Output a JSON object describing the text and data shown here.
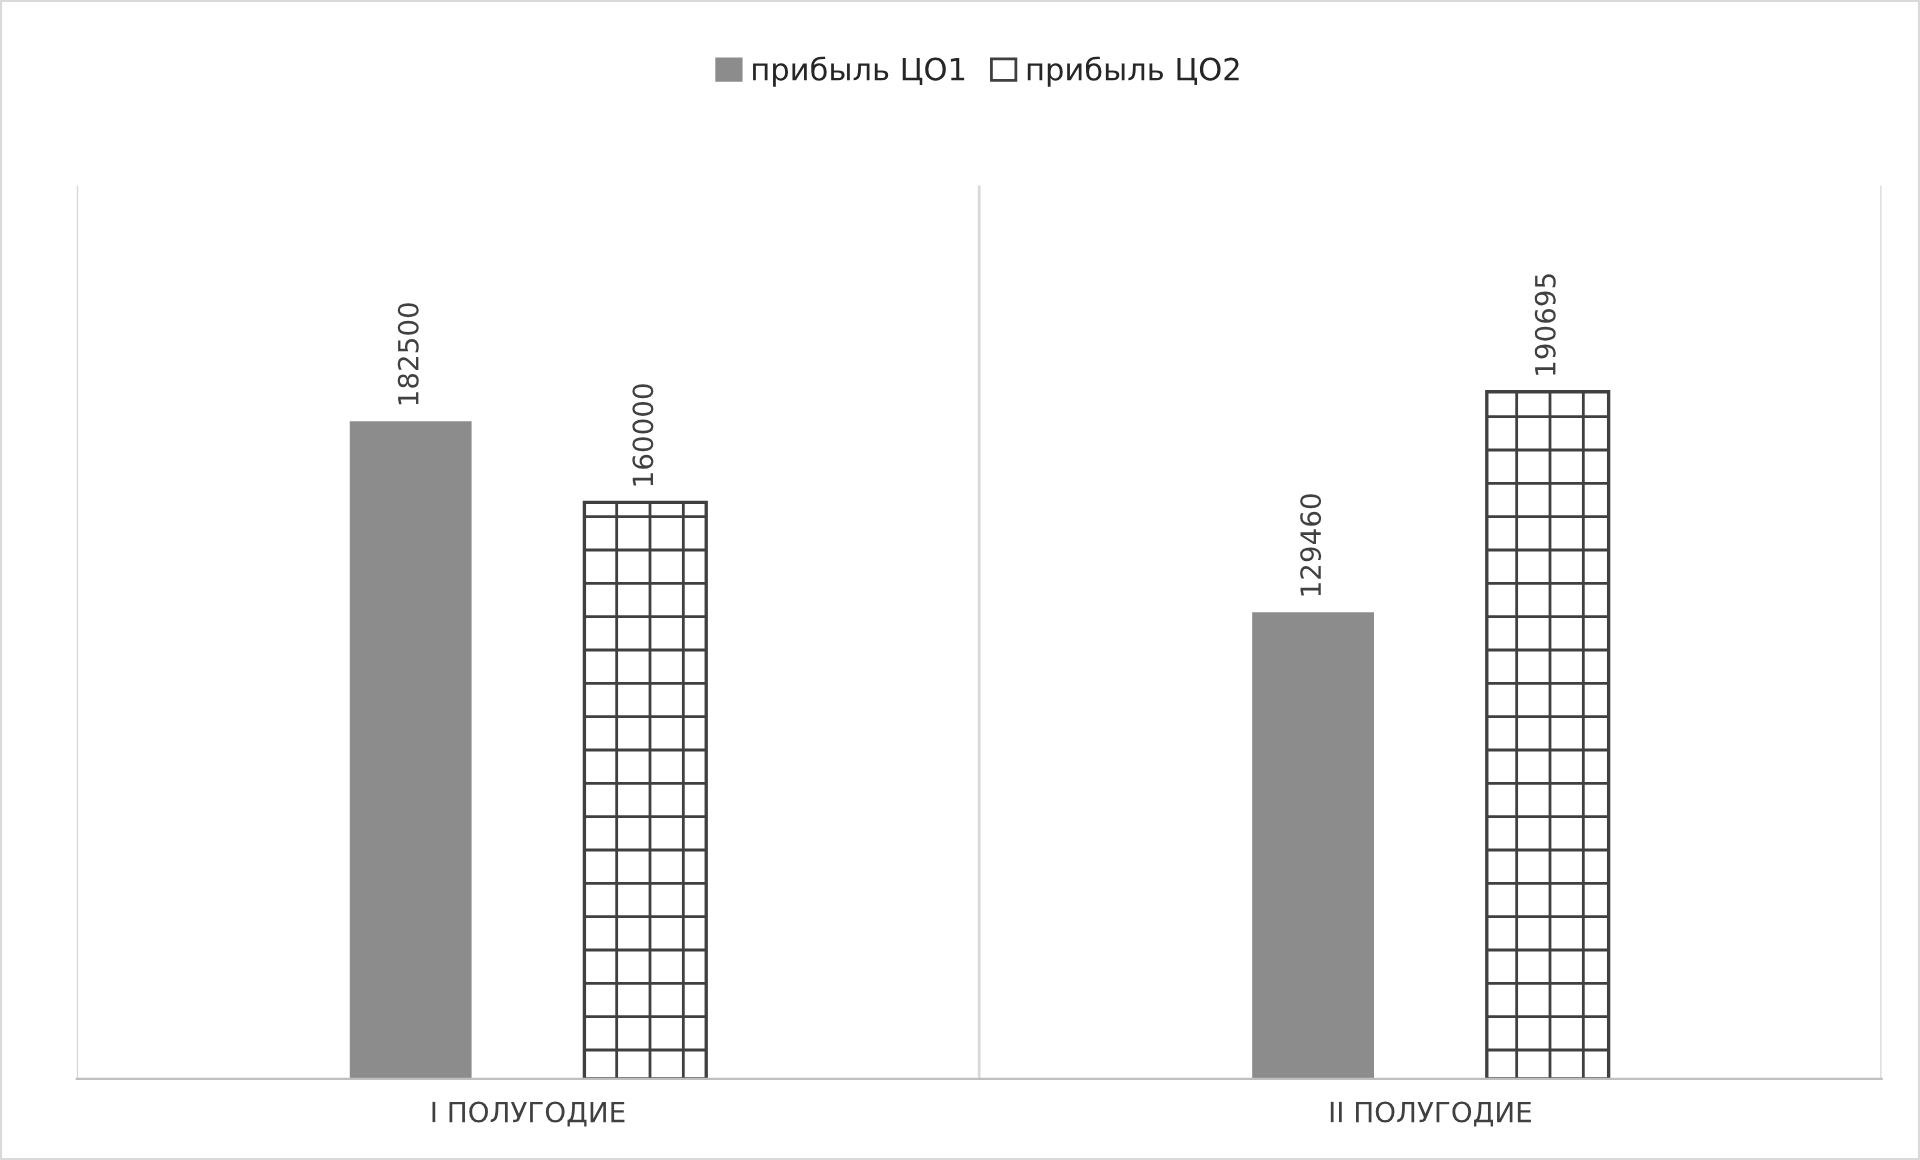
{
  "chart_data": {
    "type": "bar",
    "categories": [
      "I ПОЛУГОДИЕ",
      "II ПОЛУГОДИЕ"
    ],
    "series": [
      {
        "name": "прибыль ЦО1",
        "color": "#8c8c8c",
        "values": [
          182500,
          129460
        ]
      },
      {
        "name": "прибыль ЦО2",
        "color": "#404040",
        "values": [
          160000,
          190695
        ]
      }
    ],
    "data_labels": true,
    "grid": "x",
    "legend": "top"
  }
}
